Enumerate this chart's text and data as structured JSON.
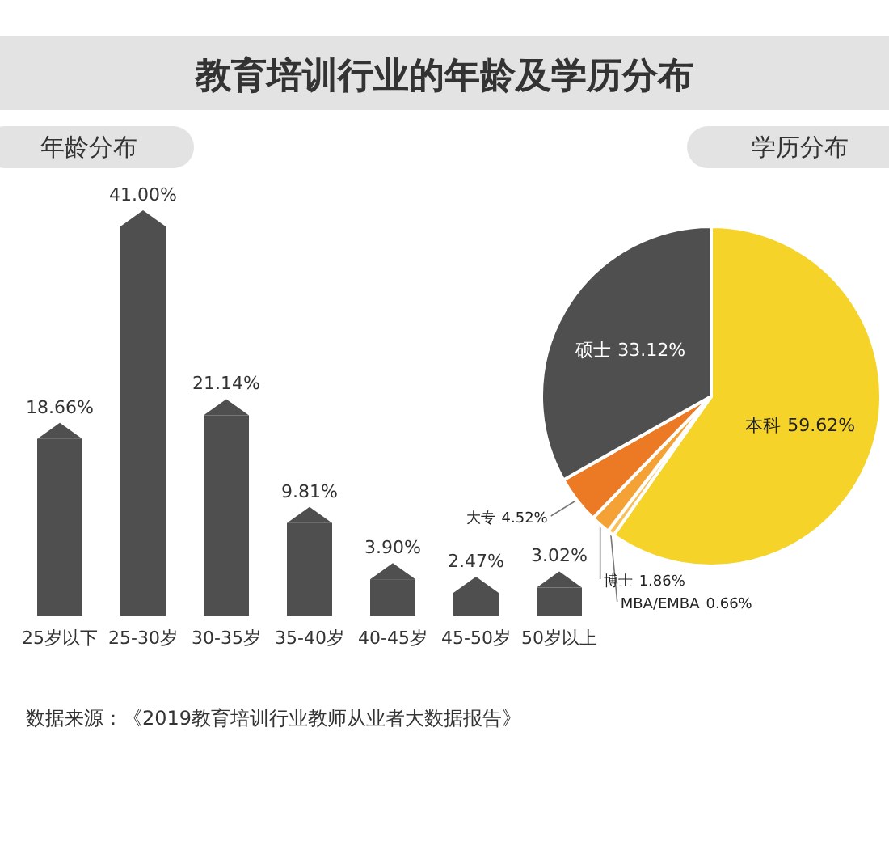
{
  "chart_data": [
    {
      "type": "other",
      "title": "教育培训行业的年龄及学历分布",
      "annotations": [
        "数据来源：《2019教育培训行业教师从业者大数据报告》"
      ]
    },
    {
      "type": "bar",
      "title": "年龄分布",
      "categories": [
        "25岁以下",
        "25-30岁",
        "30-35岁",
        "35-40岁",
        "40-45岁",
        "45-50岁",
        "50岁以上"
      ],
      "values": [
        18.66,
        41.0,
        21.14,
        9.81,
        3.9,
        2.47,
        3.02
      ],
      "value_labels": [
        "18.66%",
        "41.00%",
        "21.14%",
        "9.81%",
        "3.90%",
        "2.47%",
        "3.02%"
      ],
      "color": "#4f4f4f"
    },
    {
      "type": "pie",
      "title": "学历分布",
      "categories": [
        "本科",
        "MBA/EMBA",
        "博士",
        "大专",
        "硕士"
      ],
      "values": [
        59.62,
        0.66,
        1.86,
        4.52,
        33.12
      ],
      "value_labels": [
        "59.62%",
        "0.66%",
        "1.86%",
        "4.52%",
        "33.12%"
      ],
      "colors": [
        "#f5d328",
        "#f7c05a",
        "#f4a236",
        "#ec7a24",
        "#4f4f4f"
      ]
    }
  ]
}
